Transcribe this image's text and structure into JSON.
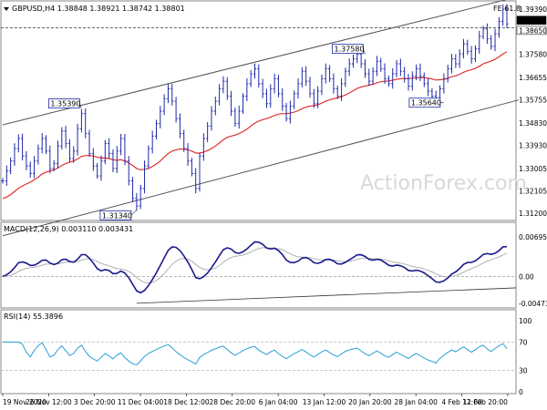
{
  "chart_data": {
    "type": "line",
    "main": {
      "symbol_header": "GBPUSD,H4 1.38848 1.38921 1.38742 1.38801",
      "fe_label": "FE 61.8",
      "price_labels": [
        "1.39390",
        "1.38801",
        "1.38650",
        "1.37580",
        "1.36655",
        "1.35755",
        "1.34830",
        "1.33930",
        "1.33005",
        "1.32105",
        "1.31200"
      ],
      "ylim": [
        1.3095,
        1.3965
      ],
      "annotations": [
        {
          "text": "1.35390",
          "price": 1.3539,
          "bar": 20
        },
        {
          "text": "1.31340",
          "price": 1.3134,
          "bar": 34
        },
        {
          "text": "1.37580",
          "price": 1.3758,
          "bar": 92
        },
        {
          "text": "1.35640",
          "price": 1.3564,
          "bar": 112
        }
      ],
      "close": [
        1.325,
        1.329,
        1.333,
        1.338,
        1.342,
        1.335,
        1.331,
        1.328,
        1.333,
        1.338,
        1.342,
        1.337,
        1.33,
        1.332,
        1.339,
        1.345,
        1.34,
        1.334,
        1.337,
        1.346,
        1.352,
        1.344,
        1.336,
        1.331,
        1.327,
        1.333,
        1.34,
        1.336,
        1.33,
        1.337,
        1.342,
        1.333,
        1.325,
        1.318,
        1.315,
        1.322,
        1.331,
        1.338,
        1.343,
        1.348,
        1.353,
        1.358,
        1.362,
        1.357,
        1.35,
        1.344,
        1.338,
        1.333,
        1.328,
        1.322,
        1.335,
        1.342,
        1.347,
        1.353,
        1.357,
        1.362,
        1.365,
        1.359,
        1.353,
        1.348,
        1.353,
        1.359,
        1.364,
        1.368,
        1.37,
        1.364,
        1.36,
        1.356,
        1.362,
        1.366,
        1.36,
        1.355,
        1.35,
        1.355,
        1.36,
        1.364,
        1.369,
        1.365,
        1.36,
        1.356,
        1.361,
        1.366,
        1.37,
        1.366,
        1.362,
        1.359,
        1.364,
        1.369,
        1.372,
        1.374,
        1.3758,
        1.372,
        1.368,
        1.365,
        1.369,
        1.373,
        1.37,
        1.366,
        1.364,
        1.368,
        1.372,
        1.369,
        1.366,
        1.363,
        1.367,
        1.37,
        1.367,
        1.364,
        1.361,
        1.359,
        1.3564,
        1.362,
        1.366,
        1.37,
        1.374,
        1.372,
        1.376,
        1.38,
        1.377,
        1.374,
        1.378,
        1.383,
        1.386,
        1.382,
        1.379,
        1.384,
        1.389,
        1.3939,
        1.388
      ],
      "ma": [
        1.318,
        1.3185,
        1.3195,
        1.3208,
        1.322,
        1.323,
        1.3238,
        1.3245,
        1.3255,
        1.3265,
        1.3278,
        1.3285,
        1.329,
        1.3295,
        1.3302,
        1.3312,
        1.332,
        1.3325,
        1.333,
        1.3338,
        1.3348,
        1.3352,
        1.3352,
        1.335,
        1.3345,
        1.3342,
        1.3342,
        1.334,
        1.3335,
        1.3333,
        1.3335,
        1.333,
        1.3322,
        1.3312,
        1.33,
        1.3295,
        1.3296,
        1.33,
        1.3308,
        1.3318,
        1.333,
        1.3345,
        1.336,
        1.337,
        1.3375,
        1.3378,
        1.3378,
        1.3375,
        1.337,
        1.3362,
        1.3362,
        1.3365,
        1.3372,
        1.338,
        1.339,
        1.3402,
        1.3415,
        1.3425,
        1.343,
        1.3434,
        1.344,
        1.3448,
        1.3458,
        1.347,
        1.3482,
        1.349,
        1.3496,
        1.35,
        1.3506,
        1.3513,
        1.3518,
        1.352,
        1.352,
        1.3522,
        1.3526,
        1.3532,
        1.354,
        1.3546,
        1.355,
        1.3552,
        1.3556,
        1.3562,
        1.357,
        1.3576,
        1.358,
        1.3583,
        1.3588,
        1.3595,
        1.3603,
        1.3612,
        1.3621,
        1.3627,
        1.3631,
        1.3634,
        1.3638,
        1.3644,
        1.3648,
        1.365,
        1.3651,
        1.3654,
        1.3658,
        1.366,
        1.3661,
        1.3661,
        1.3662,
        1.3664,
        1.3665,
        1.3664,
        1.3662,
        1.3659,
        1.3655,
        1.3656,
        1.3658,
        1.3662,
        1.3668,
        1.3672,
        1.3678,
        1.3686,
        1.3692,
        1.3696,
        1.3702,
        1.371,
        1.372,
        1.3726,
        1.3731,
        1.3738,
        1.3748,
        1.376,
        1.3768
      ],
      "channel": [
        {
          "from": [
            0,
            1.3475
          ],
          "to": [
            131,
            1.399
          ]
        },
        {
          "from": [
            0,
            1.303
          ],
          "to": [
            131,
            1.3575
          ]
        }
      ],
      "dashed_level": 1.3865
    },
    "macd": {
      "label": "MACD(12,26,9) 0.003110 0.003431",
      "scale_labels": [
        "0.006955",
        "0.00",
        "-0.004736"
      ],
      "ylim": [
        -0.0052,
        0.0074
      ],
      "trendline": {
        "from": [
          34,
          -0.0047
        ],
        "to": [
          131,
          -0.002
        ]
      }
    },
    "rsi": {
      "label": "RSI(14) 55.3896",
      "scale_labels": [
        "100",
        "70",
        "30",
        "0"
      ],
      "ylim": [
        0,
        100
      ],
      "guides": [
        70,
        30
      ]
    },
    "x_labels": [
      "19 Nov 2020",
      "26 Nov 12:00",
      "3 Dec 20:00",
      "11 Dec 04:00",
      "18 Dec 12:00",
      "28 Dec 20:00",
      "6 Jan 04:00",
      "13 Jan 12:00",
      "20 Jan 20:00",
      "28 Jan 04:00",
      "4 Feb 12:00",
      "11 Feb 20:00"
    ],
    "watermark": "ActionForex.com",
    "colors": {
      "price": "#1f2aa8",
      "ma": "#e03030",
      "macd": "#1a1a8c",
      "signal": "#b0b0b0",
      "rsi": "#2a9fd6",
      "channel": "#555555",
      "grid": "#888888"
    }
  }
}
